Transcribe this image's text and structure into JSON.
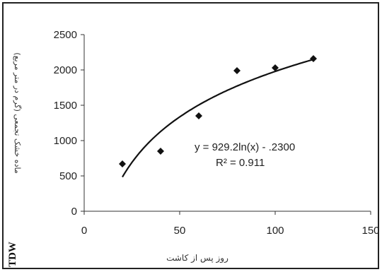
{
  "chart_data": {
    "type": "scatter",
    "x_label": "روز پس از کاشت",
    "y_label": "ماده خشک تجمعی (گرم در متر مربع)",
    "y_label_abbr": "TDW",
    "xlim": [
      0,
      150
    ],
    "ylim": [
      0,
      2500
    ],
    "x_ticks": [
      "0",
      "50",
      "100",
      "150"
    ],
    "y_ticks": [
      "0",
      "500",
      "1000",
      "1500",
      "2000",
      "2500"
    ],
    "grid": false,
    "points": [
      {
        "x": 20,
        "y": 670
      },
      {
        "x": 40,
        "y": 850
      },
      {
        "x": 60,
        "y": 1350
      },
      {
        "x": 80,
        "y": 1990
      },
      {
        "x": 100,
        "y": 2030
      },
      {
        "x": 120,
        "y": 2160
      }
    ],
    "trendline": {
      "type": "logarithmic",
      "a": 929.2,
      "b": -2300,
      "x_from": 20,
      "x_to": 120,
      "equation": "y = 929.2ln(x) - .2300",
      "r_squared": "R² = 0.911"
    }
  }
}
